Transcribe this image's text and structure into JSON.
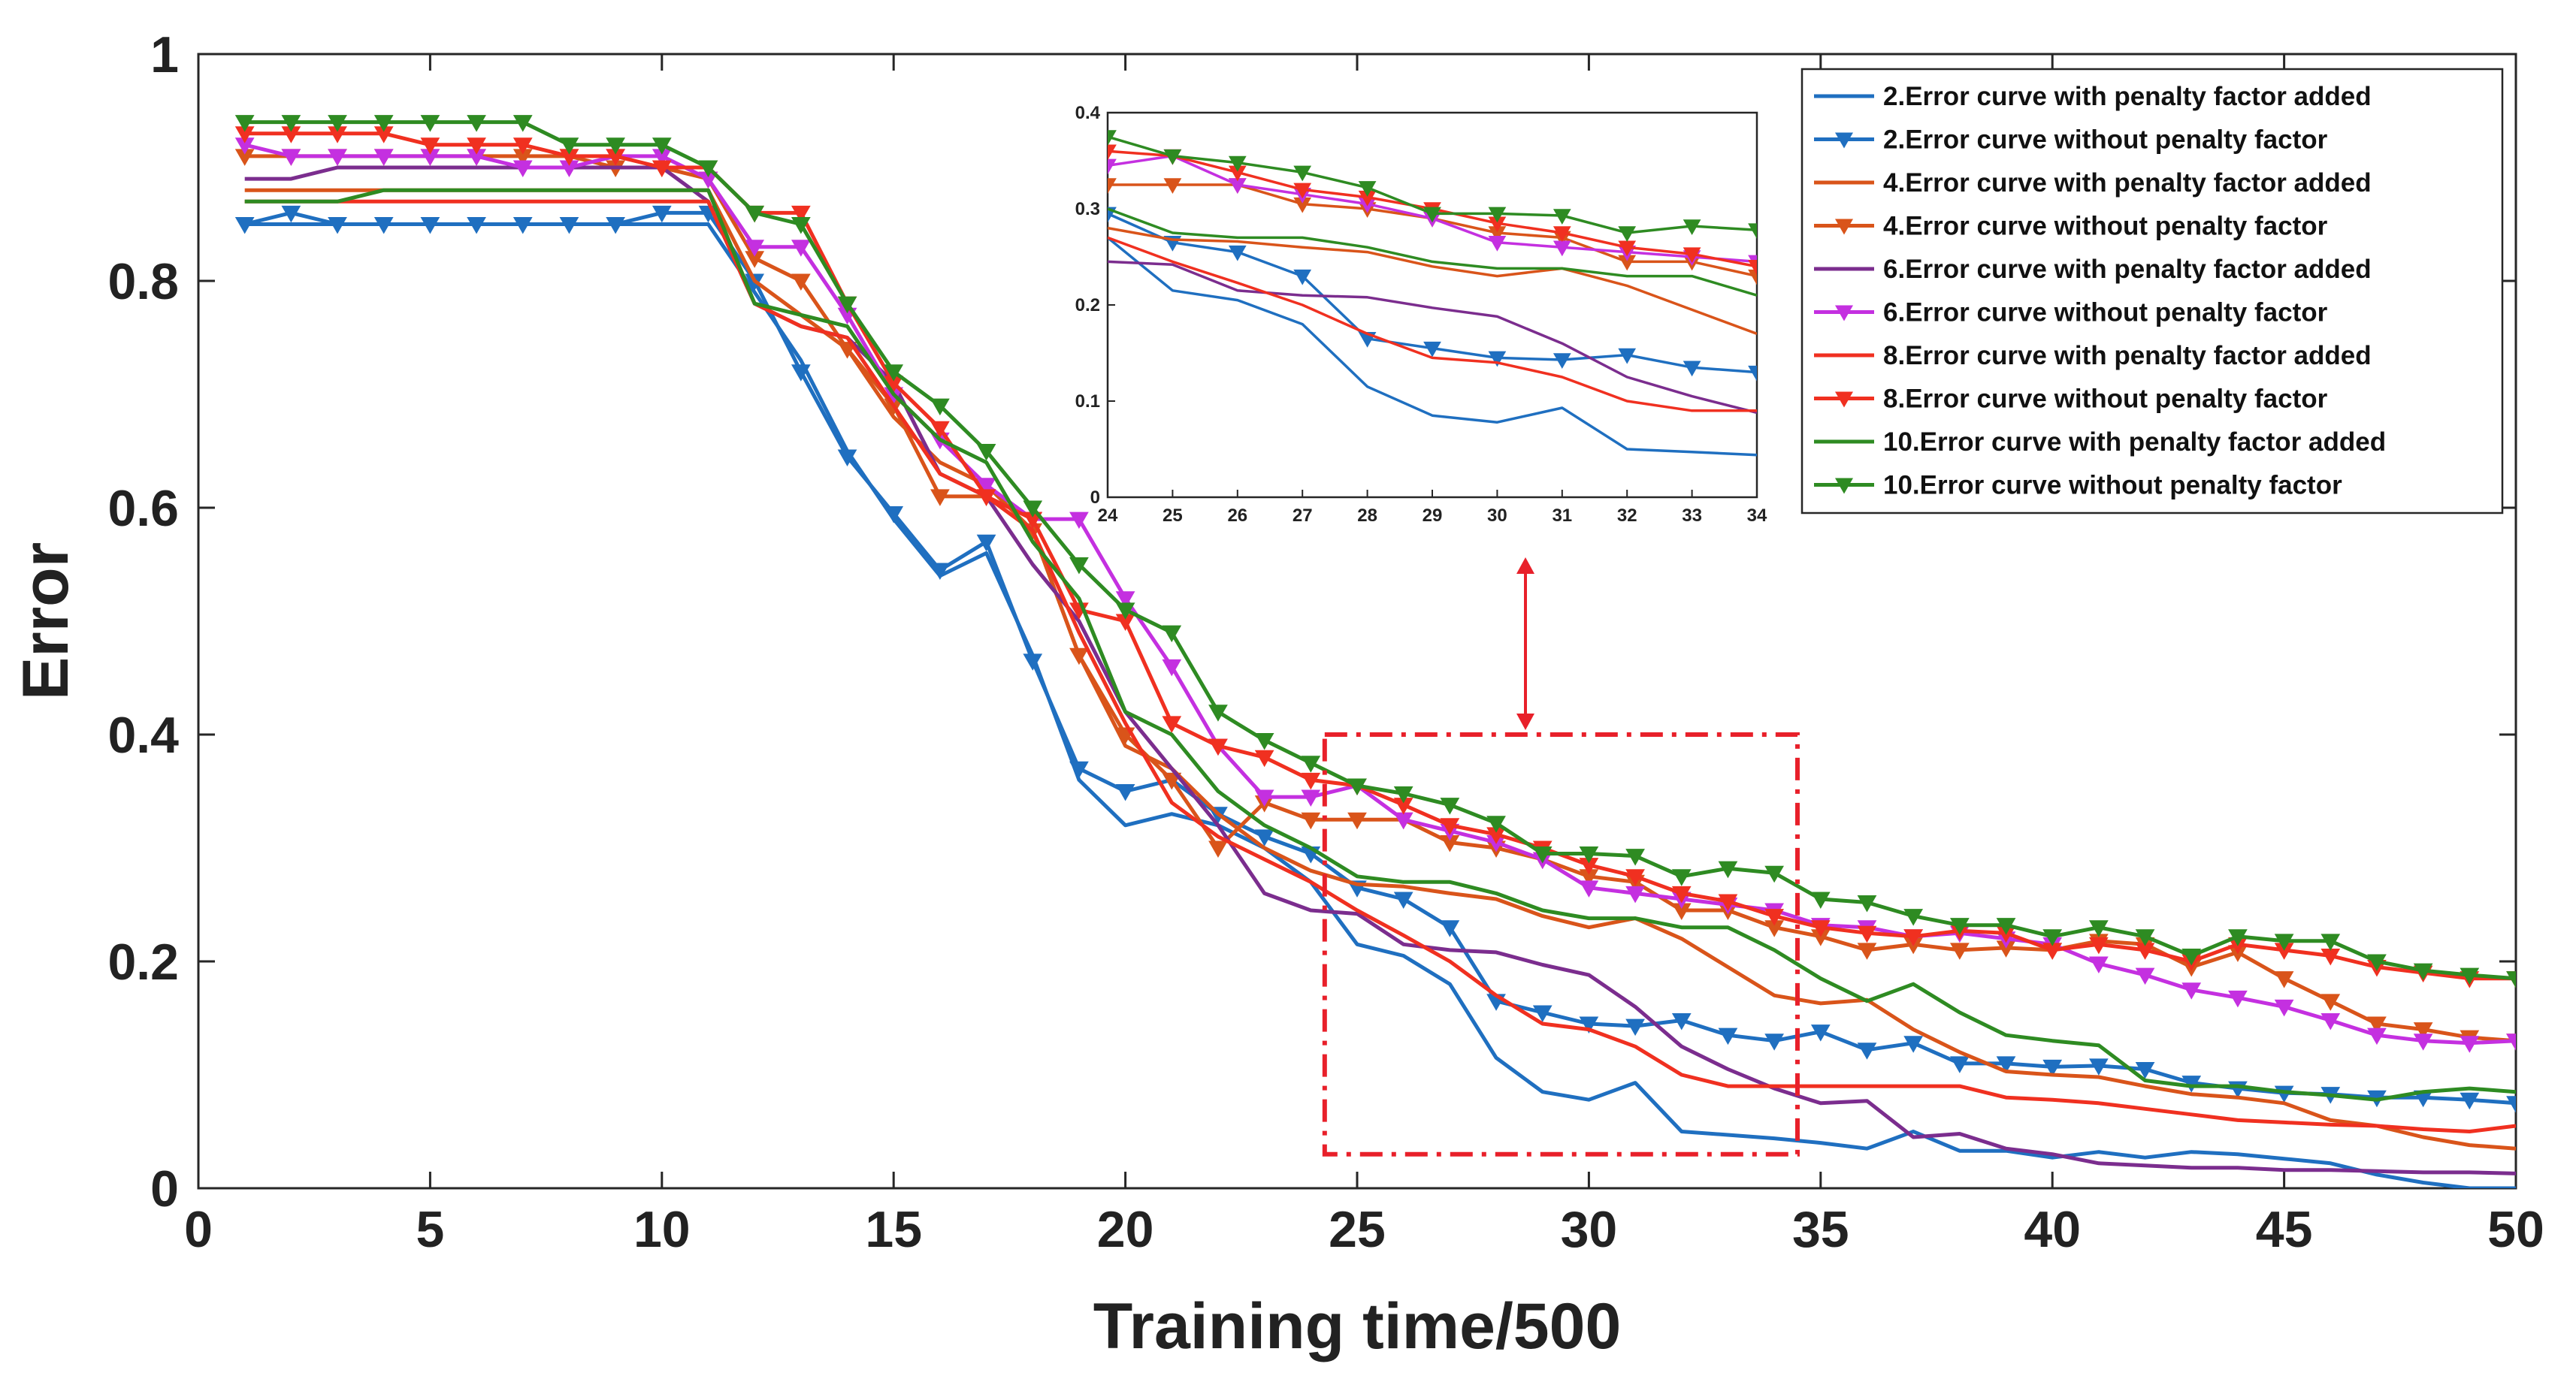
{
  "chart_data": [
    {
      "type": "line",
      "title": "",
      "xlabel": "Training time/500",
      "ylabel": "Error",
      "xlim": [
        0,
        50
      ],
      "ylim": [
        0,
        1
      ],
      "xticks": [
        0,
        5,
        10,
        15,
        20,
        25,
        30,
        35,
        40,
        45,
        50
      ],
      "xtick_labels": [
        "0",
        "5",
        "10",
        "15",
        "20",
        "25",
        "30",
        "35",
        "40",
        "45",
        "50"
      ],
      "yticks": [
        0,
        0.2,
        0.4,
        0.6,
        0.8,
        1
      ],
      "ytick_labels": [
        "0",
        "0.2",
        "0.4",
        "0.6",
        "0.8",
        "1"
      ],
      "legend_position": "top-right",
      "x": [
        1,
        2,
        3,
        4,
        5,
        6,
        7,
        8,
        9,
        10,
        11,
        12,
        13,
        14,
        15,
        16,
        17,
        18,
        19,
        20,
        21,
        22,
        23,
        24,
        25,
        26,
        27,
        28,
        29,
        30,
        31,
        32,
        33,
        34,
        35,
        36,
        37,
        38,
        39,
        40,
        41,
        42,
        43,
        44,
        45,
        46,
        47,
        48,
        49,
        50
      ],
      "series": [
        {
          "name": "2.Error curve with penalty factor added",
          "color": "#1f6fc0",
          "marker": "none",
          "values": [
            0.85,
            0.85,
            0.85,
            0.85,
            0.85,
            0.85,
            0.85,
            0.85,
            0.85,
            0.85,
            0.85,
            0.79,
            0.73,
            0.65,
            0.59,
            0.54,
            0.56,
            0.47,
            0.36,
            0.32,
            0.33,
            0.32,
            0.3,
            0.27,
            0.215,
            0.205,
            0.18,
            0.115,
            0.085,
            0.078,
            0.093,
            0.05,
            0.047,
            0.044,
            0.04,
            0.035,
            0.05,
            0.033,
            0.033,
            0.027,
            0.032,
            0.027,
            0.032,
            0.03,
            0.026,
            0.022,
            0.012,
            0.005,
            0.0,
            0.0
          ]
        },
        {
          "name": "2.Error curve without penalty factor",
          "color": "#1f6fc0",
          "marker": "triangle-down",
          "values": [
            0.85,
            0.86,
            0.85,
            0.85,
            0.85,
            0.85,
            0.85,
            0.85,
            0.85,
            0.86,
            0.86,
            0.8,
            0.72,
            0.645,
            0.595,
            0.545,
            0.57,
            0.465,
            0.37,
            0.35,
            0.36,
            0.33,
            0.31,
            0.295,
            0.265,
            0.255,
            0.23,
            0.165,
            0.155,
            0.145,
            0.143,
            0.148,
            0.135,
            0.13,
            0.138,
            0.122,
            0.128,
            0.11,
            0.11,
            0.107,
            0.108,
            0.105,
            0.093,
            0.088,
            0.084,
            0.083,
            0.08,
            0.08,
            0.078,
            0.075
          ]
        },
        {
          "name": "4.Error curve with penalty factor added",
          "color": "#d9541a",
          "marker": "none",
          "values": [
            0.88,
            0.88,
            0.88,
            0.88,
            0.88,
            0.88,
            0.88,
            0.88,
            0.88,
            0.88,
            0.88,
            0.8,
            0.77,
            0.74,
            0.68,
            0.64,
            0.62,
            0.58,
            0.47,
            0.39,
            0.37,
            0.33,
            0.3,
            0.28,
            0.268,
            0.266,
            0.26,
            0.255,
            0.24,
            0.23,
            0.238,
            0.22,
            0.195,
            0.17,
            0.163,
            0.166,
            0.14,
            0.12,
            0.103,
            0.1,
            0.098,
            0.09,
            0.083,
            0.08,
            0.075,
            0.06,
            0.055,
            0.045,
            0.038,
            0.035
          ]
        },
        {
          "name": "4.Error curve without penalty factor",
          "color": "#d9541a",
          "marker": "triangle-down",
          "values": [
            0.91,
            0.91,
            0.91,
            0.91,
            0.91,
            0.91,
            0.91,
            0.91,
            0.9,
            0.9,
            0.89,
            0.82,
            0.8,
            0.74,
            0.69,
            0.61,
            0.61,
            0.58,
            0.47,
            0.4,
            0.36,
            0.3,
            0.34,
            0.325,
            0.325,
            0.325,
            0.305,
            0.3,
            0.29,
            0.275,
            0.27,
            0.245,
            0.245,
            0.23,
            0.222,
            0.21,
            0.215,
            0.21,
            0.212,
            0.21,
            0.218,
            0.215,
            0.195,
            0.208,
            0.185,
            0.165,
            0.145,
            0.14,
            0.133,
            0.13
          ]
        },
        {
          "name": "6.Error curve with penalty factor added",
          "color": "#7b2d8e",
          "marker": "none",
          "values": [
            0.89,
            0.89,
            0.9,
            0.9,
            0.9,
            0.9,
            0.9,
            0.9,
            0.9,
            0.9,
            0.87,
            0.78,
            0.76,
            0.75,
            0.71,
            0.63,
            0.61,
            0.55,
            0.5,
            0.42,
            0.37,
            0.32,
            0.26,
            0.245,
            0.242,
            0.215,
            0.21,
            0.208,
            0.197,
            0.188,
            0.16,
            0.125,
            0.105,
            0.088,
            0.075,
            0.077,
            0.045,
            0.048,
            0.035,
            0.03,
            0.022,
            0.02,
            0.018,
            0.018,
            0.016,
            0.016,
            0.015,
            0.014,
            0.014,
            0.013
          ]
        },
        {
          "name": "6.Error curve without penalty factor",
          "color": "#c430e0",
          "marker": "triangle-down",
          "values": [
            0.92,
            0.91,
            0.91,
            0.91,
            0.91,
            0.91,
            0.9,
            0.9,
            0.91,
            0.91,
            0.89,
            0.83,
            0.83,
            0.77,
            0.7,
            0.66,
            0.62,
            0.59,
            0.59,
            0.52,
            0.46,
            0.39,
            0.345,
            0.345,
            0.355,
            0.325,
            0.315,
            0.305,
            0.29,
            0.265,
            0.26,
            0.255,
            0.25,
            0.245,
            0.232,
            0.23,
            0.222,
            0.225,
            0.22,
            0.215,
            0.198,
            0.188,
            0.175,
            0.168,
            0.16,
            0.148,
            0.135,
            0.13,
            0.128,
            0.13
          ]
        },
        {
          "name": "8.Error curve with penalty factor added",
          "color": "#f03020",
          "marker": "none",
          "values": [
            0.87,
            0.87,
            0.87,
            0.87,
            0.87,
            0.87,
            0.87,
            0.87,
            0.87,
            0.87,
            0.87,
            0.78,
            0.76,
            0.75,
            0.69,
            0.63,
            0.61,
            0.58,
            0.49,
            0.41,
            0.34,
            0.31,
            0.29,
            0.27,
            0.245,
            0.223,
            0.2,
            0.17,
            0.145,
            0.14,
            0.125,
            0.1,
            0.09,
            0.09,
            0.09,
            0.09,
            0.09,
            0.09,
            0.08,
            0.078,
            0.075,
            0.07,
            0.065,
            0.06,
            0.058,
            0.056,
            0.055,
            0.052,
            0.05,
            0.055
          ]
        },
        {
          "name": "8.Error curve without penalty factor",
          "color": "#f03020",
          "marker": "triangle-down",
          "values": [
            0.93,
            0.93,
            0.93,
            0.93,
            0.92,
            0.92,
            0.92,
            0.91,
            0.91,
            0.9,
            0.9,
            0.86,
            0.86,
            0.78,
            0.71,
            0.67,
            0.61,
            0.59,
            0.51,
            0.5,
            0.41,
            0.39,
            0.38,
            0.36,
            0.355,
            0.338,
            0.32,
            0.312,
            0.3,
            0.285,
            0.275,
            0.26,
            0.253,
            0.24,
            0.23,
            0.225,
            0.222,
            0.227,
            0.225,
            0.21,
            0.215,
            0.21,
            0.2,
            0.215,
            0.21,
            0.205,
            0.195,
            0.19,
            0.185,
            0.185
          ]
        },
        {
          "name": "10.Error curve with penalty factor added",
          "color": "#2e8b22",
          "marker": "none",
          "values": [
            0.87,
            0.87,
            0.87,
            0.88,
            0.88,
            0.88,
            0.88,
            0.88,
            0.88,
            0.88,
            0.88,
            0.78,
            0.77,
            0.76,
            0.7,
            0.66,
            0.64,
            0.57,
            0.52,
            0.42,
            0.4,
            0.35,
            0.32,
            0.3,
            0.275,
            0.27,
            0.27,
            0.26,
            0.245,
            0.238,
            0.238,
            0.23,
            0.23,
            0.21,
            0.185,
            0.165,
            0.18,
            0.155,
            0.135,
            0.13,
            0.126,
            0.095,
            0.09,
            0.09,
            0.085,
            0.082,
            0.078,
            0.085,
            0.088,
            0.085
          ]
        },
        {
          "name": "10.Error curve without penalty factor",
          "color": "#2e8b22",
          "marker": "triangle-down",
          "values": [
            0.94,
            0.94,
            0.94,
            0.94,
            0.94,
            0.94,
            0.94,
            0.92,
            0.92,
            0.92,
            0.9,
            0.86,
            0.85,
            0.78,
            0.72,
            0.69,
            0.65,
            0.6,
            0.55,
            0.51,
            0.49,
            0.42,
            0.395,
            0.375,
            0.355,
            0.348,
            0.338,
            0.322,
            0.295,
            0.295,
            0.293,
            0.275,
            0.282,
            0.278,
            0.255,
            0.252,
            0.24,
            0.232,
            0.232,
            0.222,
            0.23,
            0.222,
            0.205,
            0.222,
            0.218,
            0.218,
            0.2,
            0.192,
            0.188,
            0.185
          ]
        }
      ]
    },
    {
      "type": "line",
      "role": "inset zoom of the region x 24–34",
      "xlim": [
        24,
        34
      ],
      "ylim": [
        0,
        0.4
      ],
      "xticks": [
        24,
        25,
        26,
        27,
        28,
        29,
        30,
        31,
        32,
        33,
        34
      ],
      "xtick_labels": [
        "24",
        "25",
        "26",
        "27",
        "28",
        "29",
        "30",
        "31",
        "32",
        "33",
        "34"
      ],
      "yticks": [
        0,
        0.1,
        0.2,
        0.3,
        0.4
      ],
      "ytick_labels": [
        "0",
        "0.1",
        "0.2",
        "0.3",
        "0.4"
      ],
      "annotation": "dash-dot zoom rectangle on x 24.3–34.5, y 0.03–0.40 with double arrow to inset",
      "annotation_color": "#e8202a"
    }
  ]
}
